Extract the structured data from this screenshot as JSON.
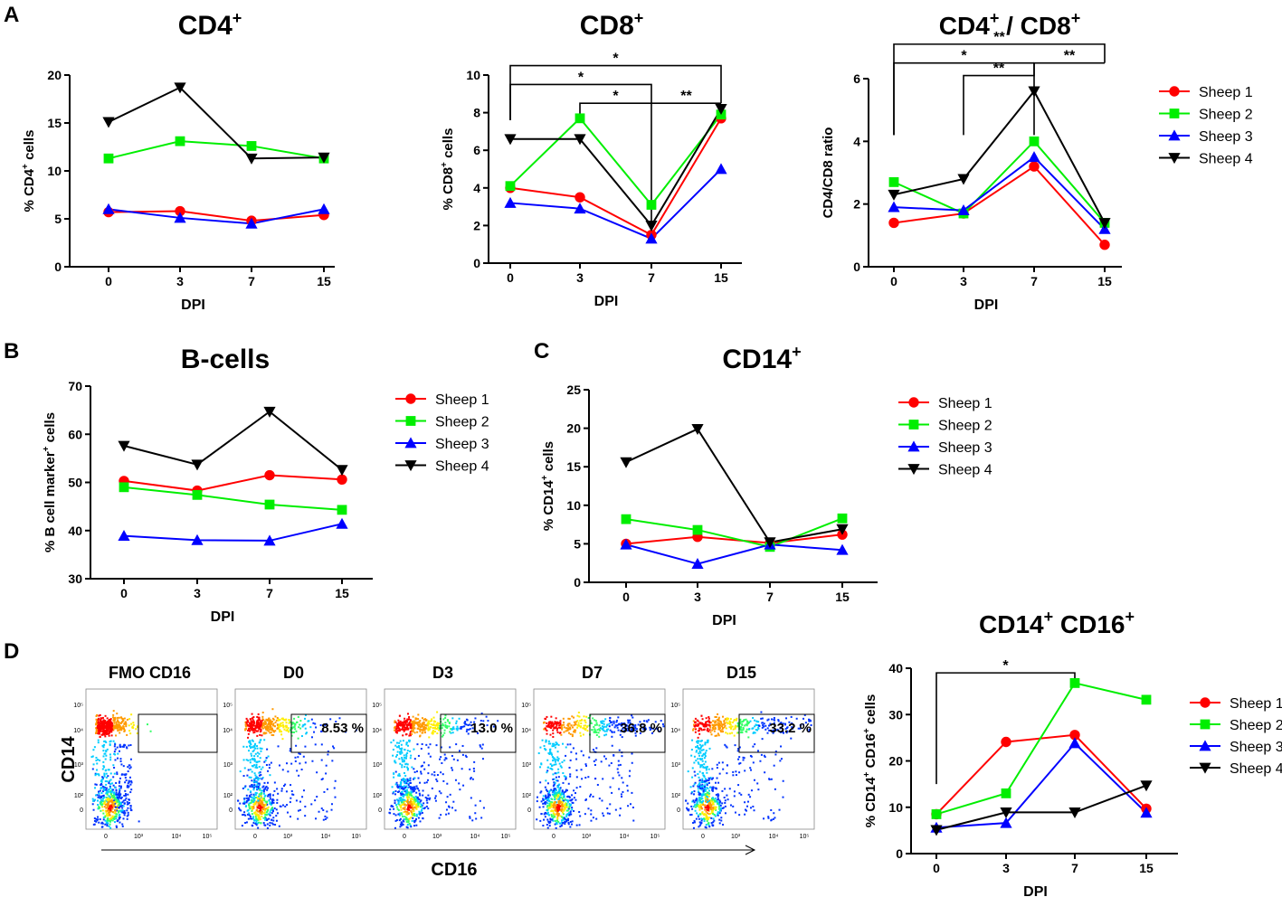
{
  "panel_letters": [
    "A",
    "B",
    "C",
    "D"
  ],
  "series_names": [
    "Sheep 1",
    "Sheep 2",
    "Sheep 3",
    "Sheep 4"
  ],
  "series_colors": [
    "#ff0000",
    "#00ee00",
    "#0000ff",
    "#000000"
  ],
  "series_markers": [
    "circle",
    "square",
    "triangle-up",
    "triangle-down"
  ],
  "chart_data": [
    {
      "id": "cd4",
      "type": "line",
      "title": "CD4",
      "title_sup": "+",
      "xlabel": "DPI",
      "ylabel": "% CD4",
      "ylabel_sup": "+",
      "ylabel_after": " cells",
      "categories": [
        "0",
        "3",
        "7",
        "15"
      ],
      "ylim": [
        0,
        20
      ],
      "yticks": [
        0,
        5,
        10,
        15,
        20
      ],
      "series": [
        {
          "name": "Sheep 1",
          "values": [
            5.7,
            5.8,
            4.8,
            5.4
          ]
        },
        {
          "name": "Sheep 2",
          "values": [
            11.3,
            13.1,
            12.6,
            11.3
          ]
        },
        {
          "name": "Sheep 3",
          "values": [
            6.0,
            5.1,
            4.5,
            6.0
          ]
        },
        {
          "name": "Sheep 4",
          "values": [
            15.1,
            18.7,
            11.3,
            11.4
          ]
        }
      ],
      "significance": []
    },
    {
      "id": "cd8",
      "type": "line",
      "title": "CD8",
      "title_sup": "+",
      "xlabel": "DPI",
      "ylabel": "% CD8",
      "ylabel_sup": "+",
      "ylabel_after": " cells",
      "categories": [
        "0",
        "3",
        "7",
        "15"
      ],
      "ylim": [
        0,
        10
      ],
      "yticks": [
        0,
        2,
        4,
        6,
        8,
        10
      ],
      "series": [
        {
          "name": "Sheep 1",
          "values": [
            4.0,
            3.5,
            1.5,
            7.7
          ]
        },
        {
          "name": "Sheep 2",
          "values": [
            4.1,
            7.7,
            3.1,
            7.9
          ]
        },
        {
          "name": "Sheep 3",
          "values": [
            3.2,
            2.9,
            1.3,
            5.0
          ]
        },
        {
          "name": "Sheep 4",
          "values": [
            6.6,
            6.6,
            2.0,
            8.2
          ]
        }
      ],
      "significance": [
        {
          "from": 0,
          "to": 3,
          "level": 10.5,
          "start_drop": 7.6,
          "end_drop": 8.5,
          "label": "*"
        },
        {
          "from": 0,
          "to": 2,
          "level": 9.5,
          "start_drop": 7.6,
          "end_drop": 8.5,
          "label": "*"
        },
        {
          "from": 1,
          "to": 2,
          "level": 8.5,
          "start_drop": 7.9,
          "end_drop": 8.5,
          "label": "*"
        },
        {
          "from": 2,
          "to": 3,
          "level": 8.5,
          "start_drop": 2.2,
          "end_drop": 8.5,
          "label": "**"
        }
      ]
    },
    {
      "id": "ratio",
      "type": "line",
      "title": "CD4",
      "title_sup": "+",
      "title_mid": " / CD8",
      "title_sup2": "+",
      "xlabel": "DPI",
      "ylabel": "CD4/CD8 ratio",
      "categories": [
        "0",
        "3",
        "7",
        "15"
      ],
      "ylim": [
        0,
        6
      ],
      "yticks": [
        0,
        2,
        4,
        6
      ],
      "series": [
        {
          "name": "Sheep 1",
          "values": [
            1.4,
            1.7,
            3.2,
            0.7
          ]
        },
        {
          "name": "Sheep 2",
          "values": [
            2.7,
            1.7,
            4.0,
            1.4
          ]
        },
        {
          "name": "Sheep 3",
          "values": [
            1.9,
            1.8,
            3.5,
            1.2
          ]
        },
        {
          "name": "Sheep 4",
          "values": [
            2.3,
            2.8,
            5.6,
            1.4
          ]
        }
      ],
      "significance": [
        {
          "from": 0,
          "to": 3,
          "level": 7.1,
          "start_drop": 4.2,
          "end_drop": 6.5,
          "label": "**"
        },
        {
          "from": 0,
          "to": 2,
          "level": 6.5,
          "start_drop": 4.2,
          "end_drop": 6.5,
          "label": "*"
        },
        {
          "from": 1,
          "to": 2,
          "level": 6.1,
          "start_drop": 4.2,
          "end_drop": 6.5,
          "label": "**"
        },
        {
          "from": 2,
          "to": 3,
          "level": 6.5,
          "start_drop": 4.2,
          "end_drop": 6.5,
          "label": "**"
        }
      ]
    },
    {
      "id": "bcells",
      "type": "line",
      "title": "B-cells",
      "xlabel": "DPI",
      "ylabel": "% B cell marker",
      "ylabel_sup": "+",
      "ylabel_after": " cells",
      "categories": [
        "0",
        "3",
        "7",
        "15"
      ],
      "ylim": [
        30,
        70
      ],
      "yticks": [
        30,
        40,
        50,
        60,
        70
      ],
      "series": [
        {
          "name": "Sheep 1",
          "values": [
            50.3,
            48.3,
            51.5,
            50.6
          ]
        },
        {
          "name": "Sheep 2",
          "values": [
            49.0,
            47.4,
            45.4,
            44.3
          ]
        },
        {
          "name": "Sheep 3",
          "values": [
            38.9,
            38.0,
            37.9,
            41.4
          ]
        },
        {
          "name": "Sheep 4",
          "values": [
            57.6,
            53.7,
            64.7,
            52.6
          ]
        }
      ],
      "significance": []
    },
    {
      "id": "cd14",
      "type": "line",
      "title": "CD14",
      "title_sup": "+",
      "xlabel": "DPI",
      "ylabel": "% CD14",
      "ylabel_sup": "+",
      "ylabel_after": " cells",
      "categories": [
        "0",
        "3",
        "7",
        "15"
      ],
      "ylim": [
        0,
        25
      ],
      "yticks": [
        0,
        5,
        10,
        15,
        20,
        25
      ],
      "series": [
        {
          "name": "Sheep 1",
          "values": [
            5.0,
            5.9,
            5.1,
            6.2
          ]
        },
        {
          "name": "Sheep 2",
          "values": [
            8.2,
            6.8,
            4.6,
            8.3
          ]
        },
        {
          "name": "Sheep 3",
          "values": [
            4.9,
            2.4,
            4.9,
            4.2
          ]
        },
        {
          "name": "Sheep 4",
          "values": [
            15.6,
            19.9,
            5.2,
            6.9
          ]
        }
      ],
      "significance": []
    },
    {
      "id": "cd14cd16",
      "type": "line",
      "title": "CD14",
      "title_sup": "+",
      "title_mid": " CD16",
      "title_sup2": "+",
      "xlabel": "DPI",
      "ylabel": "% CD14",
      "ylabel_sup": "+",
      "ylabel_mid": " CD16",
      "ylabel_sup2": "+",
      "ylabel_after": " cells",
      "categories": [
        "0",
        "3",
        "7",
        "15"
      ],
      "ylim": [
        0,
        40
      ],
      "yticks": [
        0,
        10,
        20,
        30,
        40
      ],
      "series": [
        {
          "name": "Sheep 1",
          "values": [
            8.5,
            24.1,
            25.6,
            9.7
          ]
        },
        {
          "name": "Sheep 2",
          "values": [
            8.5,
            13.0,
            36.8,
            33.2
          ]
        },
        {
          "name": "Sheep 3",
          "values": [
            5.6,
            6.6,
            23.8,
            8.8
          ]
        },
        {
          "name": "Sheep 4",
          "values": [
            5.1,
            8.9,
            8.9,
            14.7
          ]
        }
      ],
      "significance": [
        {
          "from": 0,
          "to": 2,
          "level": 39.0,
          "start_drop": 15.0,
          "end_drop": 37.0,
          "label": "*"
        }
      ]
    }
  ],
  "flow": {
    "panel_titles": [
      "FMO CD16",
      "D0",
      "D3",
      "D7",
      "D15"
    ],
    "gate_percentages": [
      "",
      "8.53 %",
      "13.0 %",
      "36.8 %",
      "33.2 %"
    ],
    "gate_values": [
      0,
      8.53,
      13.0,
      36.8,
      33.2
    ],
    "x_label": "CD16",
    "y_label": "CD14",
    "y_ticks": [
      "10⁵",
      "10⁴",
      "10³",
      "10²",
      "0"
    ],
    "x_ticks": [
      "0",
      "10³",
      "10⁴",
      "10⁵"
    ]
  }
}
